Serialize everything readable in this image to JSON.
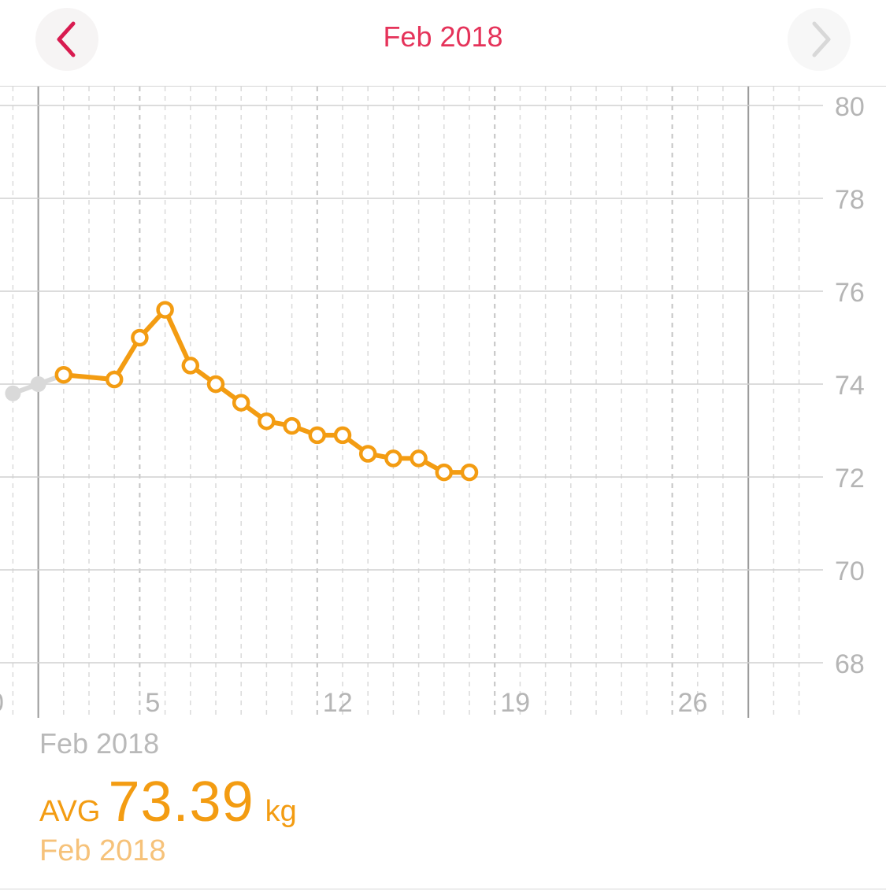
{
  "header": {
    "title": "Feb 2018",
    "prev_icon": "chevron-left-icon",
    "next_icon": "chevron-right-icon"
  },
  "colors": {
    "accent": "#e5335a",
    "series": "#f39c12",
    "series_light": "#f6c27a",
    "prior_series": "#d9d9d9",
    "grid": "#d0d0d0",
    "axis_text": "#b5b5b5"
  },
  "chart_data": {
    "type": "line",
    "title": "",
    "xlabel": "",
    "ylabel": "",
    "ylim": [
      68,
      80
    ],
    "y_ticks": [
      "80",
      "78",
      "76",
      "74",
      "72",
      "70",
      "68"
    ],
    "x_ticks": [
      "5",
      "12",
      "19",
      "26"
    ],
    "grid": true,
    "series": [
      {
        "values_by_day": [
          {
            "day": 2,
            "value": 74.2
          },
          {
            "day": 4,
            "value": 74.1
          },
          {
            "day": 5,
            "value": 75.0
          },
          {
            "day": 6,
            "value": 75.6
          },
          {
            "day": 7,
            "value": 74.4
          },
          {
            "day": 8,
            "value": 74.0
          },
          {
            "day": 9,
            "value": 73.6
          },
          {
            "day": 10,
            "value": 73.2
          },
          {
            "day": 11,
            "value": 73.1
          },
          {
            "day": 12,
            "value": 72.9
          },
          {
            "day": 13,
            "value": 72.9
          },
          {
            "day": 14,
            "value": 72.5
          },
          {
            "day": 15,
            "value": 72.4
          },
          {
            "day": 16,
            "value": 72.4
          },
          {
            "day": 17,
            "value": 72.1
          },
          {
            "day": 18,
            "value": 72.1
          }
        ]
      }
    ],
    "prior_points": [
      {
        "day": 0,
        "value": 73.8
      },
      {
        "day": 1,
        "value": 74.0
      }
    ]
  },
  "summary": {
    "period": "Feb 2018",
    "avg_label": "AVG",
    "avg_value": "73.39",
    "unit": "kg",
    "avg_period": "Feb 2018"
  }
}
